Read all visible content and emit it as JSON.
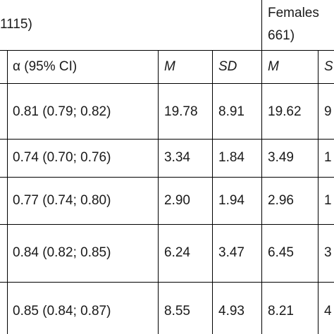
{
  "header": {
    "group_left": "1115)",
    "group_right_line1": "Females",
    "group_right_line2": "661)"
  },
  "columns": {
    "alpha": "α (95% CI)",
    "m1": "M",
    "sd1": "SD",
    "m2": "M",
    "sd2_partial": "S"
  },
  "rows": [
    {
      "alpha": "0.81 (0.79; 0.82)",
      "m1": "19.78",
      "sd1": "8.91",
      "m2": "19.62",
      "sd2_partial": "9"
    },
    {
      "alpha": "0.74 (0.70; 0.76)",
      "m1": "3.34",
      "sd1": "1.84",
      "m2": "3.49",
      "sd2_partial": "1"
    },
    {
      "alpha": "0.77 (0.74; 0.80)",
      "m1": "2.90",
      "sd1": "1.94",
      "m2": "2.96",
      "sd2_partial": "1"
    },
    {
      "alpha": "0.84 (0.82; 0.85)",
      "m1": "6.24",
      "sd1": "3.47",
      "m2": "6.45",
      "sd2_partial": "3"
    },
    {
      "alpha": "0.85 (0.84; 0.87)",
      "m1": "8.55",
      "sd1": "4.93",
      "m2": "8.21",
      "sd2_partial": "4"
    }
  ]
}
